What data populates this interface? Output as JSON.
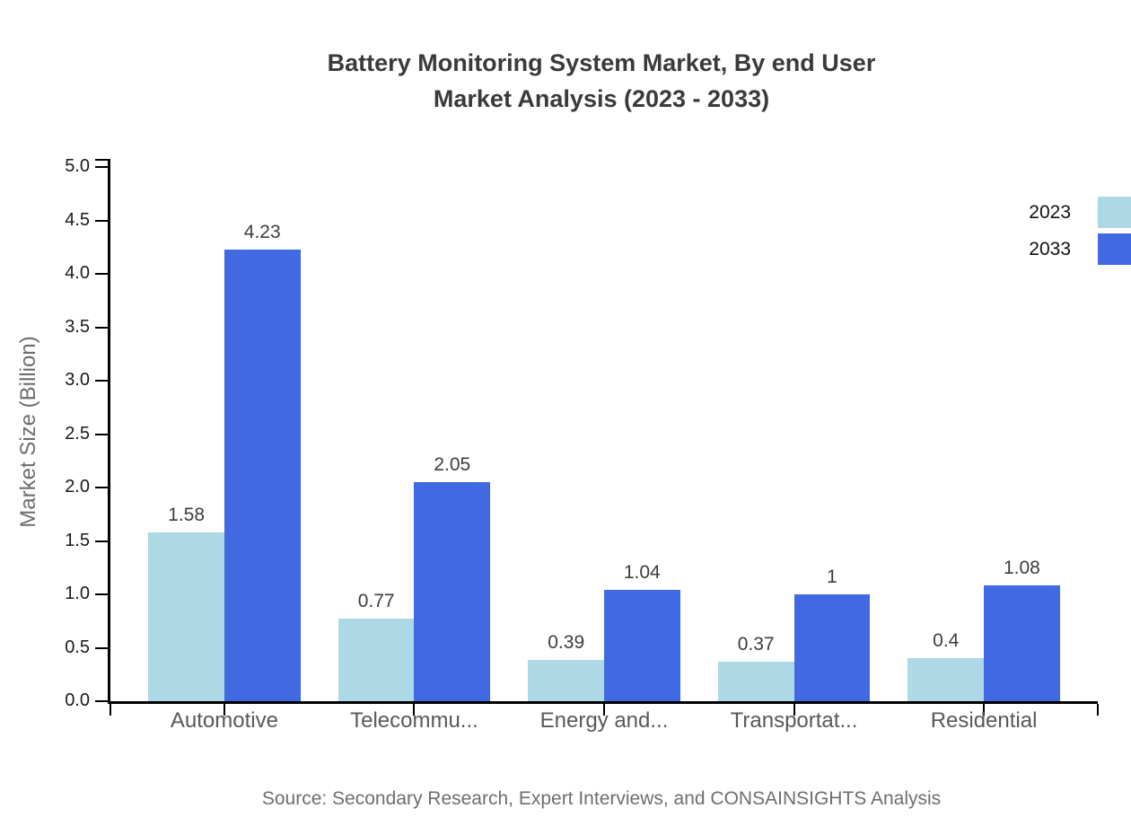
{
  "title": {
    "line1": "Battery Monitoring System Market, By end User",
    "line2": "Market Analysis (2023 - 2033)"
  },
  "legend": {
    "items": [
      {
        "label": "2023",
        "color": "#ADD8E6"
      },
      {
        "label": "2033",
        "color": "#4169E1"
      }
    ]
  },
  "source": "Source: Secondary Research, Expert Interviews, and CONSAINSIGHTS Analysis",
  "colors": {
    "series_2023": "#ADD8E6",
    "series_2033": "#4169E1",
    "axis": "#000000",
    "title_text": "#3a3a3a",
    "axis_label_text": "#6e6e6e",
    "category_text": "#595959",
    "value_label_text": "#3d3d3d"
  },
  "chart_data": {
    "type": "bar",
    "title": "Battery Monitoring System Market, By end User Market Analysis (2023 - 2033)",
    "categories": [
      "Automotive",
      "Telecommu...",
      "Energy and...",
      "Transportat...",
      "Residential"
    ],
    "series": [
      {
        "name": "2023",
        "color": "#ADD8E6",
        "values": [
          1.58,
          0.77,
          0.39,
          0.37,
          0.4
        ],
        "labels": [
          "1.58",
          "0.77",
          "0.39",
          "0.37",
          "0.4"
        ]
      },
      {
        "name": "2033",
        "color": "#4169E1",
        "values": [
          4.23,
          2.05,
          1.04,
          1,
          1.08
        ],
        "labels": [
          "4.23",
          "2.05",
          "1.04",
          "1",
          "1.08"
        ]
      }
    ],
    "xlabel": "",
    "ylabel": "Market Size (Billion)",
    "ylim": [
      0,
      5
    ],
    "ytick_step": 0.5,
    "yticks": [
      "0.0",
      "0.5",
      "1.0",
      "1.5",
      "2.0",
      "2.5",
      "3.0",
      "3.5",
      "4.0",
      "4.5",
      "5.0"
    ],
    "grid": false,
    "legend_position": "top-right",
    "bar_layout": "grouped",
    "value_labels_shown": true
  }
}
